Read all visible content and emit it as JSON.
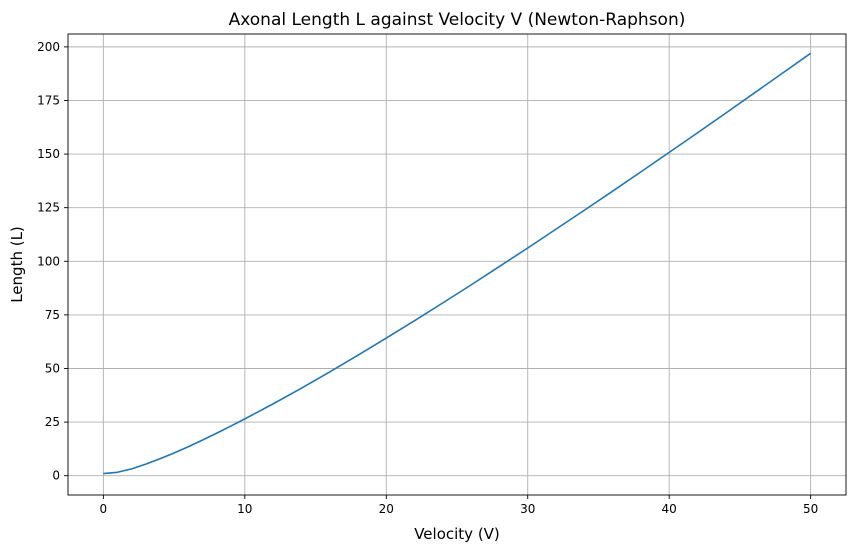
{
  "chart_data": {
    "type": "line",
    "title": "Axonal Length L against Velocity V (Newton-Raphson)",
    "xlabel": "Velocity (V)",
    "ylabel": "Length (L)",
    "xlim": [
      -2.5,
      52.5
    ],
    "ylim": [
      -9,
      206
    ],
    "xticks": [
      0,
      10,
      20,
      30,
      40,
      50
    ],
    "yticks": [
      0,
      25,
      50,
      75,
      100,
      125,
      150,
      175,
      200
    ],
    "grid": true,
    "line_color": "#1f77b4",
    "series": [
      {
        "x": [
          0,
          1,
          2,
          3,
          4,
          5,
          6,
          7,
          8,
          9,
          10,
          12,
          14,
          16,
          18,
          20,
          22,
          24,
          26,
          28,
          30,
          32,
          34,
          36,
          38,
          40,
          42,
          44,
          46,
          48,
          50
        ],
        "values": [
          1.0,
          1.6,
          3.2,
          5.4,
          7.9,
          10.6,
          13.5,
          16.6,
          19.8,
          23.1,
          26.5,
          33.5,
          40.8,
          48.4,
          56.2,
          64.2,
          72.3,
          80.6,
          89.0,
          97.6,
          106.2,
          115.0,
          123.8,
          132.7,
          141.7,
          150.8,
          159.9,
          169.1,
          178.4,
          187.7,
          197.0
        ]
      }
    ]
  }
}
